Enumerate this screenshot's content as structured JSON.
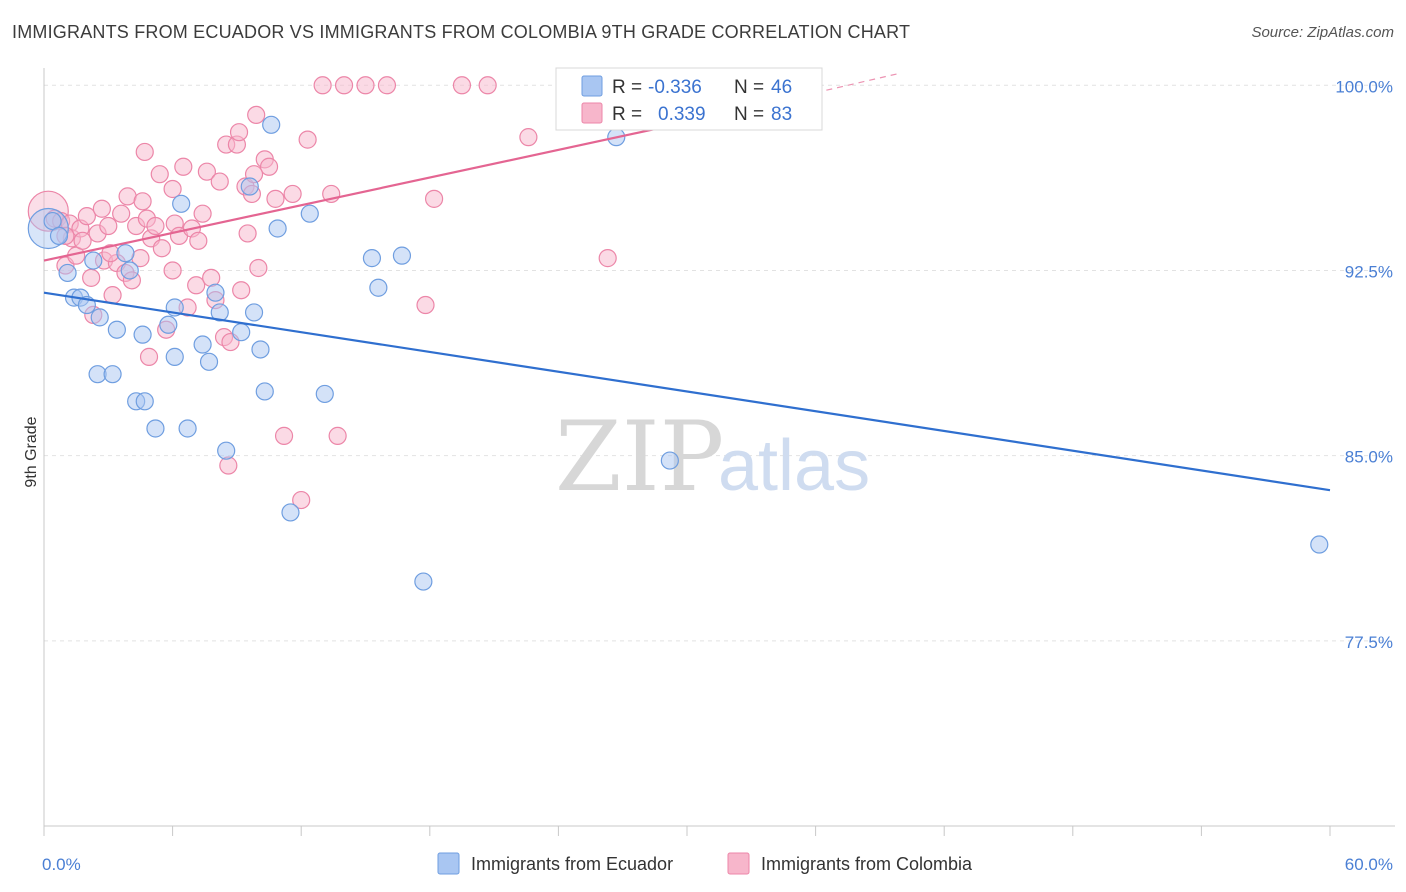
{
  "header": {
    "title": "IMMIGRANTS FROM ECUADOR VS IMMIGRANTS FROM COLOMBIA 9TH GRADE CORRELATION CHART",
    "source": "Source: ZipAtlas.com"
  },
  "watermark": {
    "zip": "ZIP",
    "atlas": "atlas"
  },
  "stats": {
    "r_label": "R =",
    "n_label": "N =",
    "rows": [
      {
        "series": "Immigrants from Ecuador",
        "r": "-0.336",
        "n": "46"
      },
      {
        "series": "Immigrants from Colombia",
        "r": "0.339",
        "n": "83"
      }
    ]
  },
  "colors": {
    "ecuador_fill": "#a9c6f2",
    "ecuador_stroke": "#6f9ee0",
    "ecuador_line": "#2f6fcf",
    "colombia_fill": "#f7b6cb",
    "colombia_stroke": "#ec86a8",
    "colombia_line": "#e46592",
    "axis_text": "#4a7fd4",
    "grid": "#e2e2e2"
  },
  "chart_data": {
    "type": "scatter",
    "title": "IMMIGRANTS FROM ECUADOR VS IMMIGRANTS FROM COLOMBIA 9TH GRADE CORRELATION CHART",
    "xlabel": "",
    "ylabel": "9th Grade",
    "xlim": [
      0,
      60
    ],
    "ylim": [
      70,
      100.7
    ],
    "x_tick_labels": [
      {
        "value": 0,
        "label": "0.0%"
      },
      {
        "value": 60,
        "label": "60.0%"
      }
    ],
    "x_minor_ticks": [
      0,
      6,
      12,
      18,
      24,
      30,
      36,
      42,
      48,
      54,
      60
    ],
    "y_ticks": [
      {
        "value": 100.0,
        "label": "100.0%"
      },
      {
        "value": 92.5,
        "label": "92.5%"
      },
      {
        "value": 85.0,
        "label": "85.0%"
      },
      {
        "value": 77.5,
        "label": "77.5%"
      }
    ],
    "grid": true,
    "legend_position": "bottom",
    "series": [
      {
        "name": "Immigrants from Ecuador",
        "trend": {
          "x": [
            0,
            60
          ],
          "y": [
            91.6,
            83.6
          ]
        },
        "points": [
          [
            0.2,
            94.2,
            "l"
          ],
          [
            0.4,
            94.5
          ],
          [
            0.7,
            93.9
          ],
          [
            1.1,
            92.4
          ],
          [
            1.4,
            91.4
          ],
          [
            1.7,
            91.4
          ],
          [
            2.0,
            91.1
          ],
          [
            2.3,
            92.9
          ],
          [
            2.6,
            90.6
          ],
          [
            2.5,
            88.3
          ],
          [
            3.2,
            88.3
          ],
          [
            3.4,
            90.1
          ],
          [
            3.8,
            93.2
          ],
          [
            4.0,
            92.5
          ],
          [
            4.3,
            87.2
          ],
          [
            4.7,
            87.2
          ],
          [
            4.6,
            89.9
          ],
          [
            5.2,
            86.1
          ],
          [
            5.8,
            90.3
          ],
          [
            6.1,
            91.0
          ],
          [
            6.1,
            89.0
          ],
          [
            6.4,
            95.2
          ],
          [
            6.7,
            86.1
          ],
          [
            7.4,
            89.5
          ],
          [
            7.7,
            88.8
          ],
          [
            8.0,
            91.6
          ],
          [
            8.2,
            90.8
          ],
          [
            8.5,
            85.2
          ],
          [
            9.2,
            90.0
          ],
          [
            9.6,
            95.9
          ],
          [
            9.8,
            90.8
          ],
          [
            10.1,
            89.3
          ],
          [
            10.3,
            87.6
          ],
          [
            10.6,
            98.4
          ],
          [
            10.9,
            94.2
          ],
          [
            11.5,
            82.7
          ],
          [
            12.4,
            94.8
          ],
          [
            13.1,
            87.5
          ],
          [
            15.3,
            93.0
          ],
          [
            15.6,
            91.8
          ],
          [
            16.7,
            93.1
          ],
          [
            17.7,
            79.9
          ],
          [
            26.7,
            97.9
          ],
          [
            29.2,
            84.8
          ],
          [
            59.5,
            81.4
          ]
        ]
      },
      {
        "name": "Immigrants from Colombia",
        "trend": {
          "x": [
            0,
            30.5
          ],
          "y": [
            92.9,
            98.6
          ]
        },
        "trend_dashed_to": {
          "x": 40,
          "y": 100.5
        },
        "points": [
          [
            0.2,
            94.9,
            "l"
          ],
          [
            0.5,
            94.6
          ],
          [
            0.8,
            94.5
          ],
          [
            1.0,
            92.7
          ],
          [
            1.2,
            94.4
          ],
          [
            1.3,
            93.8
          ],
          [
            1.5,
            93.1
          ],
          [
            1.7,
            94.2
          ],
          [
            1.8,
            93.7
          ],
          [
            2.0,
            94.7
          ],
          [
            2.2,
            92.2
          ],
          [
            2.3,
            90.7
          ],
          [
            2.5,
            94.0
          ],
          [
            2.8,
            92.9
          ],
          [
            3.0,
            94.3
          ],
          [
            3.2,
            91.5
          ],
          [
            3.4,
            92.8
          ],
          [
            3.6,
            94.8
          ],
          [
            3.8,
            92.4
          ],
          [
            3.9,
            95.5
          ],
          [
            4.1,
            92.1
          ],
          [
            4.3,
            94.3
          ],
          [
            4.5,
            93.0
          ],
          [
            4.6,
            95.3
          ],
          [
            4.7,
            97.3
          ],
          [
            4.8,
            94.6
          ],
          [
            5.0,
            93.8
          ],
          [
            5.2,
            94.3
          ],
          [
            5.4,
            96.4
          ],
          [
            5.5,
            93.4
          ],
          [
            5.7,
            90.1
          ],
          [
            6.0,
            95.8
          ],
          [
            6.1,
            94.4
          ],
          [
            6.3,
            93.9
          ],
          [
            6.5,
            96.7
          ],
          [
            6.7,
            91.0
          ],
          [
            6.9,
            94.2
          ],
          [
            7.1,
            91.9
          ],
          [
            7.2,
            93.7
          ],
          [
            7.4,
            94.8
          ],
          [
            7.6,
            96.5
          ],
          [
            7.8,
            92.2
          ],
          [
            8.0,
            91.3
          ],
          [
            8.2,
            96.1
          ],
          [
            8.4,
            89.8
          ],
          [
            8.5,
            97.6
          ],
          [
            8.7,
            89.6
          ],
          [
            9.0,
            97.6
          ],
          [
            9.1,
            98.1
          ],
          [
            9.2,
            91.7
          ],
          [
            9.4,
            95.9
          ],
          [
            9.5,
            94.0
          ],
          [
            9.7,
            95.6
          ],
          [
            9.9,
            98.8
          ],
          [
            10.0,
            92.6
          ],
          [
            10.3,
            97.0
          ],
          [
            10.5,
            96.7
          ],
          [
            11.2,
            85.8
          ],
          [
            11.6,
            95.6
          ],
          [
            12.0,
            83.2
          ],
          [
            12.3,
            97.8
          ],
          [
            13.0,
            100.0
          ],
          [
            13.4,
            95.6
          ],
          [
            13.7,
            85.8
          ],
          [
            14.0,
            100.0
          ],
          [
            15.0,
            100.0
          ],
          [
            16.0,
            100.0
          ],
          [
            17.8,
            91.1
          ],
          [
            18.2,
            95.4
          ],
          [
            19.5,
            100.0
          ],
          [
            20.7,
            100.0
          ],
          [
            22.6,
            97.9
          ],
          [
            24.6,
            100.0
          ],
          [
            26.3,
            93.0
          ],
          [
            28.0,
            100.0
          ],
          [
            8.6,
            84.6
          ],
          [
            10.8,
            95.4
          ],
          [
            9.8,
            96.4
          ],
          [
            6.0,
            92.5
          ],
          [
            4.9,
            89.0
          ],
          [
            3.1,
            93.2
          ],
          [
            2.7,
            95.0
          ],
          [
            1.0,
            93.9
          ]
        ]
      }
    ]
  },
  "legend": {
    "items": [
      {
        "label": "Immigrants from Ecuador"
      },
      {
        "label": "Immigrants from Colombia"
      }
    ]
  }
}
